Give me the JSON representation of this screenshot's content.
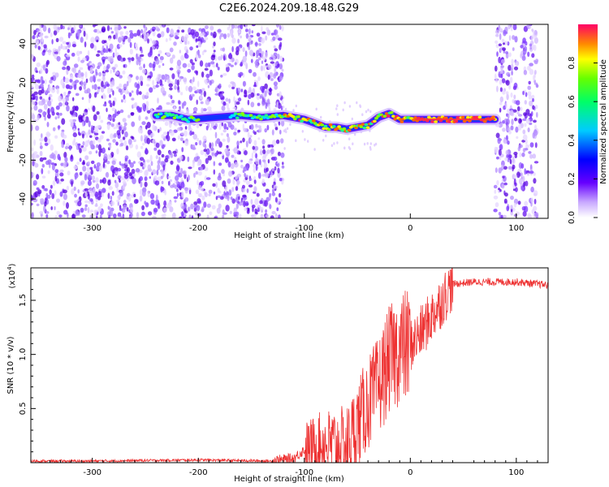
{
  "figure": {
    "title": "C2E6.2024.209.18.48.G29"
  },
  "chart_data": [
    {
      "type": "heatmap",
      "xlabel": "Height of straight line (km)",
      "ylabel": "Frequency (Hz)",
      "xlim": [
        -358,
        130
      ],
      "ylim": [
        -50,
        50
      ],
      "xticks": [
        -300,
        -200,
        -100,
        0,
        100
      ],
      "yticks": [
        -40,
        -20,
        0,
        20,
        40
      ],
      "colorbar": {
        "label": "Normalized spectral amplitude",
        "range": [
          0,
          1
        ],
        "ticks": [
          0.0,
          0.2,
          0.4,
          0.6,
          0.8
        ],
        "colormap": "white-purple-blue-cyan-green-yellow-red"
      },
      "signal_trace": {
        "x": [
          -240,
          -225,
          -210,
          -160,
          -140,
          -120,
          -100,
          -90,
          -80,
          -70,
          -60,
          -50,
          -40,
          -30,
          -20,
          -10,
          0,
          20,
          40,
          60,
          80
        ],
        "y": [
          3,
          3,
          1,
          3,
          2,
          3,
          1,
          -1,
          -3,
          -3,
          -4,
          -3,
          -2,
          2,
          4,
          1,
          1,
          1,
          1,
          1,
          1
        ]
      },
      "noise_regions": [
        [
          -358,
          -120
        ],
        [
          80,
          120
        ]
      ]
    },
    {
      "type": "line",
      "xlabel": "Height of straight line (km)",
      "ylabel": "SNR (10 * v/v)",
      "multiplier_label": "(x10",
      "multiplier_exponent": "4",
      "xlim": [
        -358,
        130
      ],
      "ylim": [
        0,
        18000
      ],
      "xticks": [
        -300,
        -200,
        -100,
        0,
        100
      ],
      "yticks": [
        0.5,
        1.0,
        1.5
      ],
      "color": "#ee3333",
      "series": [
        {
          "x": [
            -358,
            -300,
            -200,
            -130,
            -110,
            -100,
            -80,
            -60,
            -50,
            -40,
            -30,
            -20,
            -10,
            0,
            10,
            20,
            30,
            40,
            60,
            80,
            100,
            110,
            120,
            130
          ],
          "y": [
            150,
            150,
            250,
            150,
            400,
            1200,
            1800,
            1500,
            3500,
            5500,
            7000,
            9500,
            10500,
            10800,
            12000,
            13500,
            15000,
            16500,
            16700,
            16700,
            16700,
            16600,
            16500,
            16400
          ]
        }
      ]
    }
  ]
}
